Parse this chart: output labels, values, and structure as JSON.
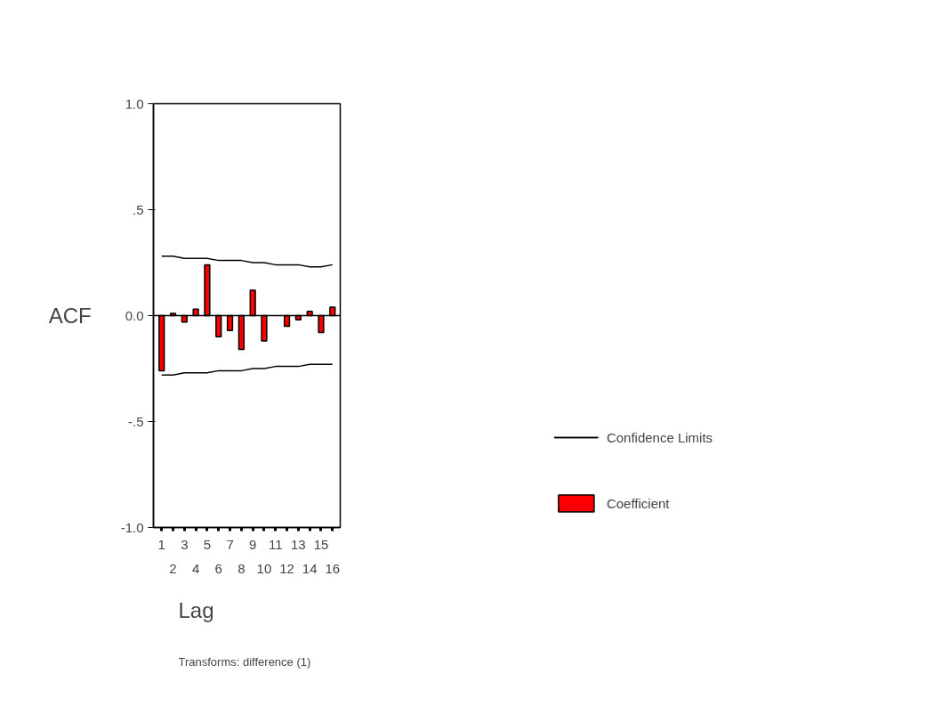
{
  "chart_data": {
    "type": "bar",
    "xlabel": "Lag",
    "ylabel": "ACF",
    "categories": [
      "1",
      "2",
      "3",
      "4",
      "5",
      "6",
      "7",
      "8",
      "9",
      "10",
      "11",
      "12",
      "13",
      "14",
      "15",
      "16"
    ],
    "series": [
      {
        "name": "Coefficient",
        "color": "#ff0000",
        "values": [
          -0.26,
          0.01,
          -0.03,
          0.03,
          0.24,
          -0.1,
          -0.07,
          -0.16,
          0.12,
          -0.12,
          null,
          -0.05,
          -0.02,
          0.02,
          -0.08,
          0.04
        ]
      },
      {
        "name": "Confidence Limits",
        "type": "line",
        "color": "#000000",
        "values": [
          0.28,
          0.28,
          0.27,
          0.27,
          0.27,
          0.26,
          0.26,
          0.26,
          0.25,
          0.25,
          0.24,
          0.24,
          0.24,
          0.23,
          0.23,
          0.24
        ]
      },
      {
        "type": "line",
        "color": "#000000",
        "values": [
          -0.28,
          -0.28,
          -0.27,
          -0.27,
          -0.27,
          -0.26,
          -0.26,
          -0.26,
          -0.25,
          -0.25,
          -0.24,
          -0.24,
          -0.24,
          -0.23,
          -0.23,
          -0.23
        ]
      }
    ],
    "ylim": [
      -1.0,
      1.0
    ],
    "yticks": [
      {
        "value": -1.0,
        "label": "-1.0"
      },
      {
        "value": -0.5,
        "label": "-.5"
      },
      {
        "value": 0.0,
        "label": "0.0"
      },
      {
        "value": 0.5,
        "label": ".5"
      },
      {
        "value": 1.0,
        "label": "1.0"
      }
    ],
    "ref_lines": [
      {
        "axis": "y",
        "value": 0,
        "color": "#000000"
      }
    ],
    "grid": false,
    "legend": "right",
    "annotations": [
      "Transforms: difference (1)"
    ]
  }
}
